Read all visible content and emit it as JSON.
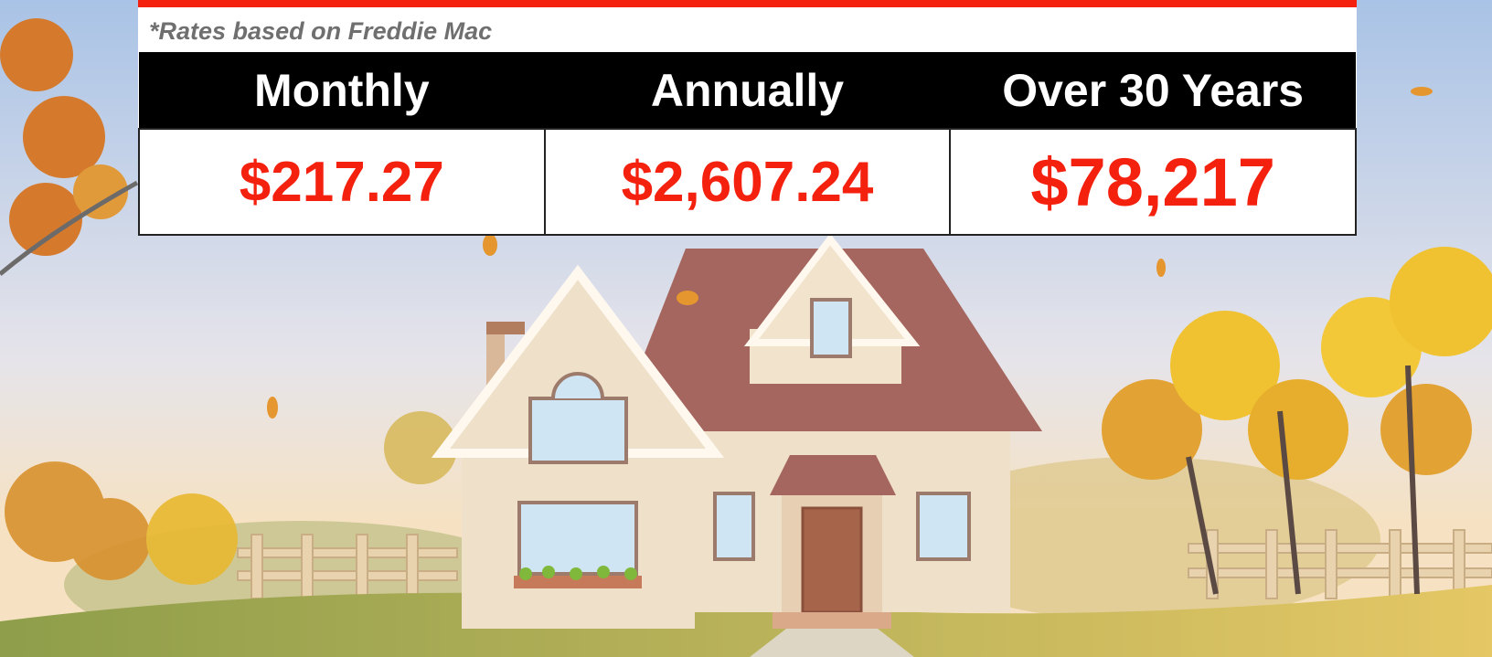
{
  "note": "*Rates based on Freddie Mac",
  "table": {
    "header": [
      "Monthly",
      "Annually",
      "Over 30 Years"
    ],
    "rows": [
      [
        "$217.27",
        "$2,607.24",
        "$78,217"
      ]
    ]
  }
}
